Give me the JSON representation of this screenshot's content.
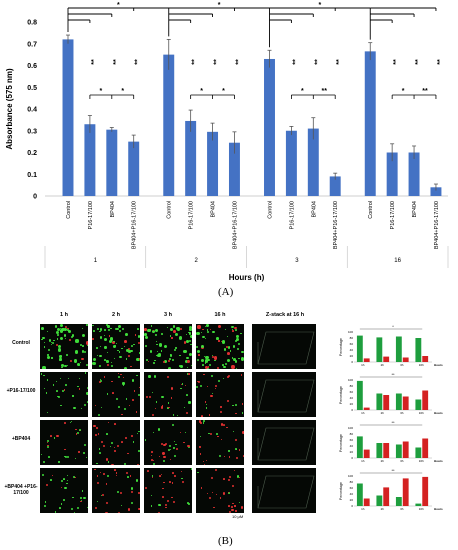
{
  "panel_a_label": "(A)",
  "panel_b_label": "(B)",
  "chart_data": [
    {
      "type": "bar",
      "ylabel": "Absorbance (575 nm)",
      "xlabel": "Hours (h)",
      "ylim": [
        0,
        0.8
      ],
      "yticks": [
        "0",
        "0.1",
        "0.2",
        "0.3",
        "0.4",
        "0.5",
        "0.6",
        "0.7",
        "0.8"
      ],
      "groups": [
        "1",
        "2",
        "3",
        "16"
      ],
      "categories": [
        "Control",
        "P16-17/100",
        "BP404",
        "BP404+P16-17/100"
      ],
      "values": [
        [
          0.72,
          0.33,
          0.305,
          0.25
        ],
        [
          0.65,
          0.345,
          0.295,
          0.245
        ],
        [
          0.63,
          0.3,
          0.31,
          0.09
        ],
        [
          0.665,
          0.2,
          0.2,
          0.04
        ]
      ],
      "errors": [
        [
          0.02,
          0.04,
          0.01,
          0.03
        ],
        [
          0.07,
          0.05,
          0.04,
          0.05
        ],
        [
          0.04,
          0.02,
          0.05,
          0.015
        ],
        [
          0.04,
          0.04,
          0.03,
          0.015
        ]
      ],
      "bar_color": "#4472c4",
      "significance": {
        "top_star": "*",
        "pair_double_star": "**",
        "pair_single_star": "*"
      }
    },
    {
      "type": "bar",
      "panel": "B-mini",
      "rows": [
        "Control",
        "+P16-17/100",
        "+BP404",
        "+BP404 +P16-17/100"
      ],
      "columns": [
        "1 h",
        "2 h",
        "3 h",
        "16 h",
        "Z-stack at 16 h"
      ],
      "xlabel": "Hours",
      "ylabel": "Percentage",
      "yticks": [
        "0",
        "20",
        "40",
        "60",
        "80",
        "100"
      ],
      "ylim": [
        0,
        100
      ],
      "categories": [
        "1h",
        "2h",
        "3h",
        "16h"
      ],
      "series_colors": {
        "green": "#1e9e3e",
        "red": "#d42121"
      },
      "values": [
        {
          "green": [
            88,
            82,
            85,
            80
          ],
          "red": [
            12,
            18,
            15,
            20
          ]
        },
        {
          "green": [
            97,
            55,
            55,
            35
          ],
          "red": [
            8,
            50,
            45,
            65
          ]
        },
        {
          "green": [
            72,
            50,
            45,
            35
          ],
          "red": [
            28,
            50,
            55,
            65
          ]
        },
        {
          "green": [
            75,
            35,
            30,
            8
          ],
          "red": [
            25,
            62,
            92,
            97
          ]
        }
      ],
      "scale_label": "10 μM"
    }
  ]
}
